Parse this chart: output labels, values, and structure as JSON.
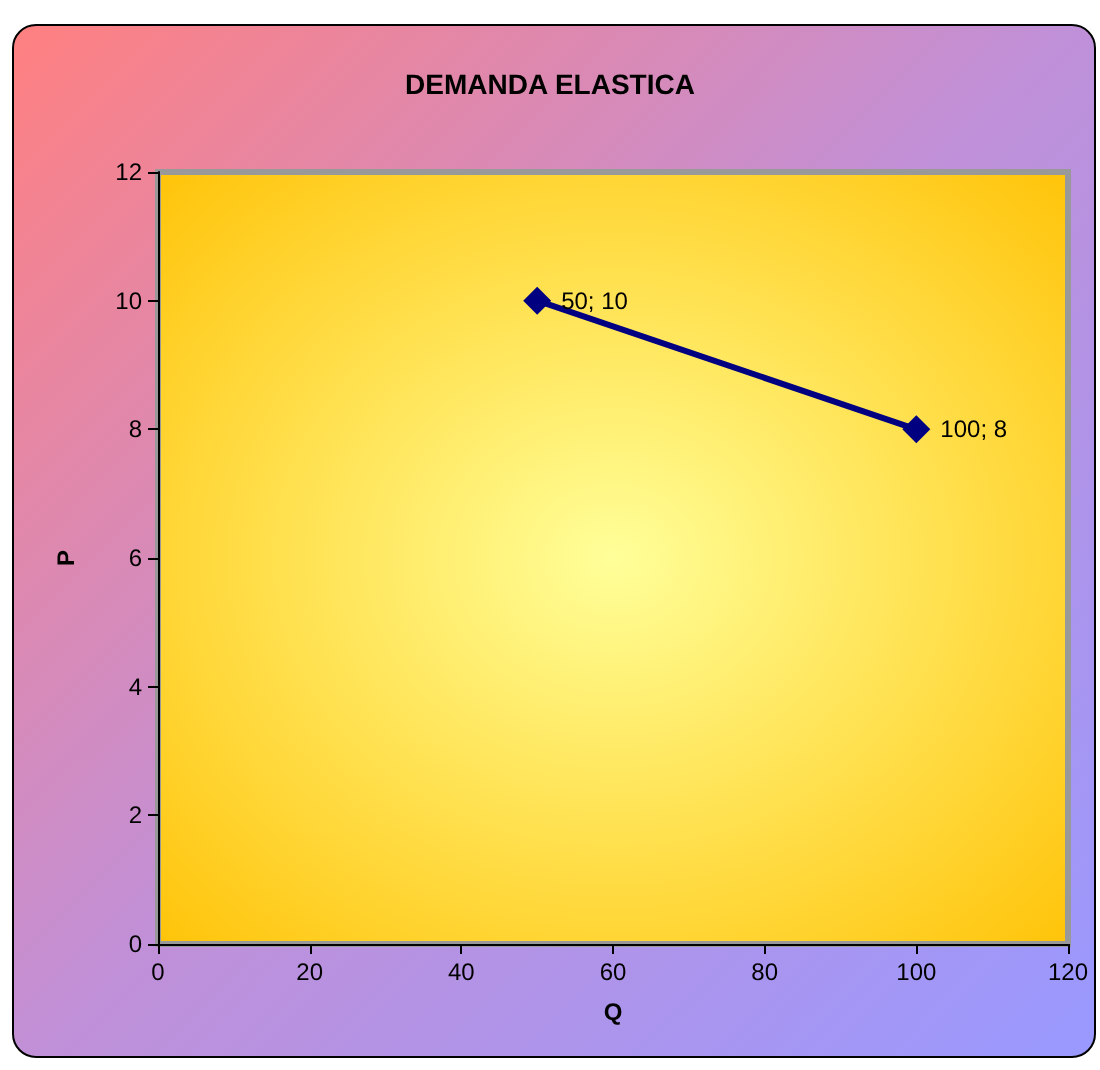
{
  "chart_data": {
    "type": "line",
    "title": "DEMANDA ELASTICA",
    "xlabel": "Q",
    "ylabel": "P",
    "x": [
      50,
      100
    ],
    "series": [
      {
        "color": "#000080",
        "values": [
          10,
          8
        ],
        "value_labels": [
          "50; 10",
          "100; 8"
        ]
      }
    ],
    "xlim": [
      0,
      120
    ],
    "xticks": [
      0,
      20,
      40,
      60,
      80,
      100,
      120
    ],
    "ylim": [
      0,
      12
    ],
    "yticks": [
      0,
      2,
      4,
      6,
      8,
      10,
      12
    ],
    "grid": false,
    "marker": "diamond",
    "line_style": "solid"
  }
}
